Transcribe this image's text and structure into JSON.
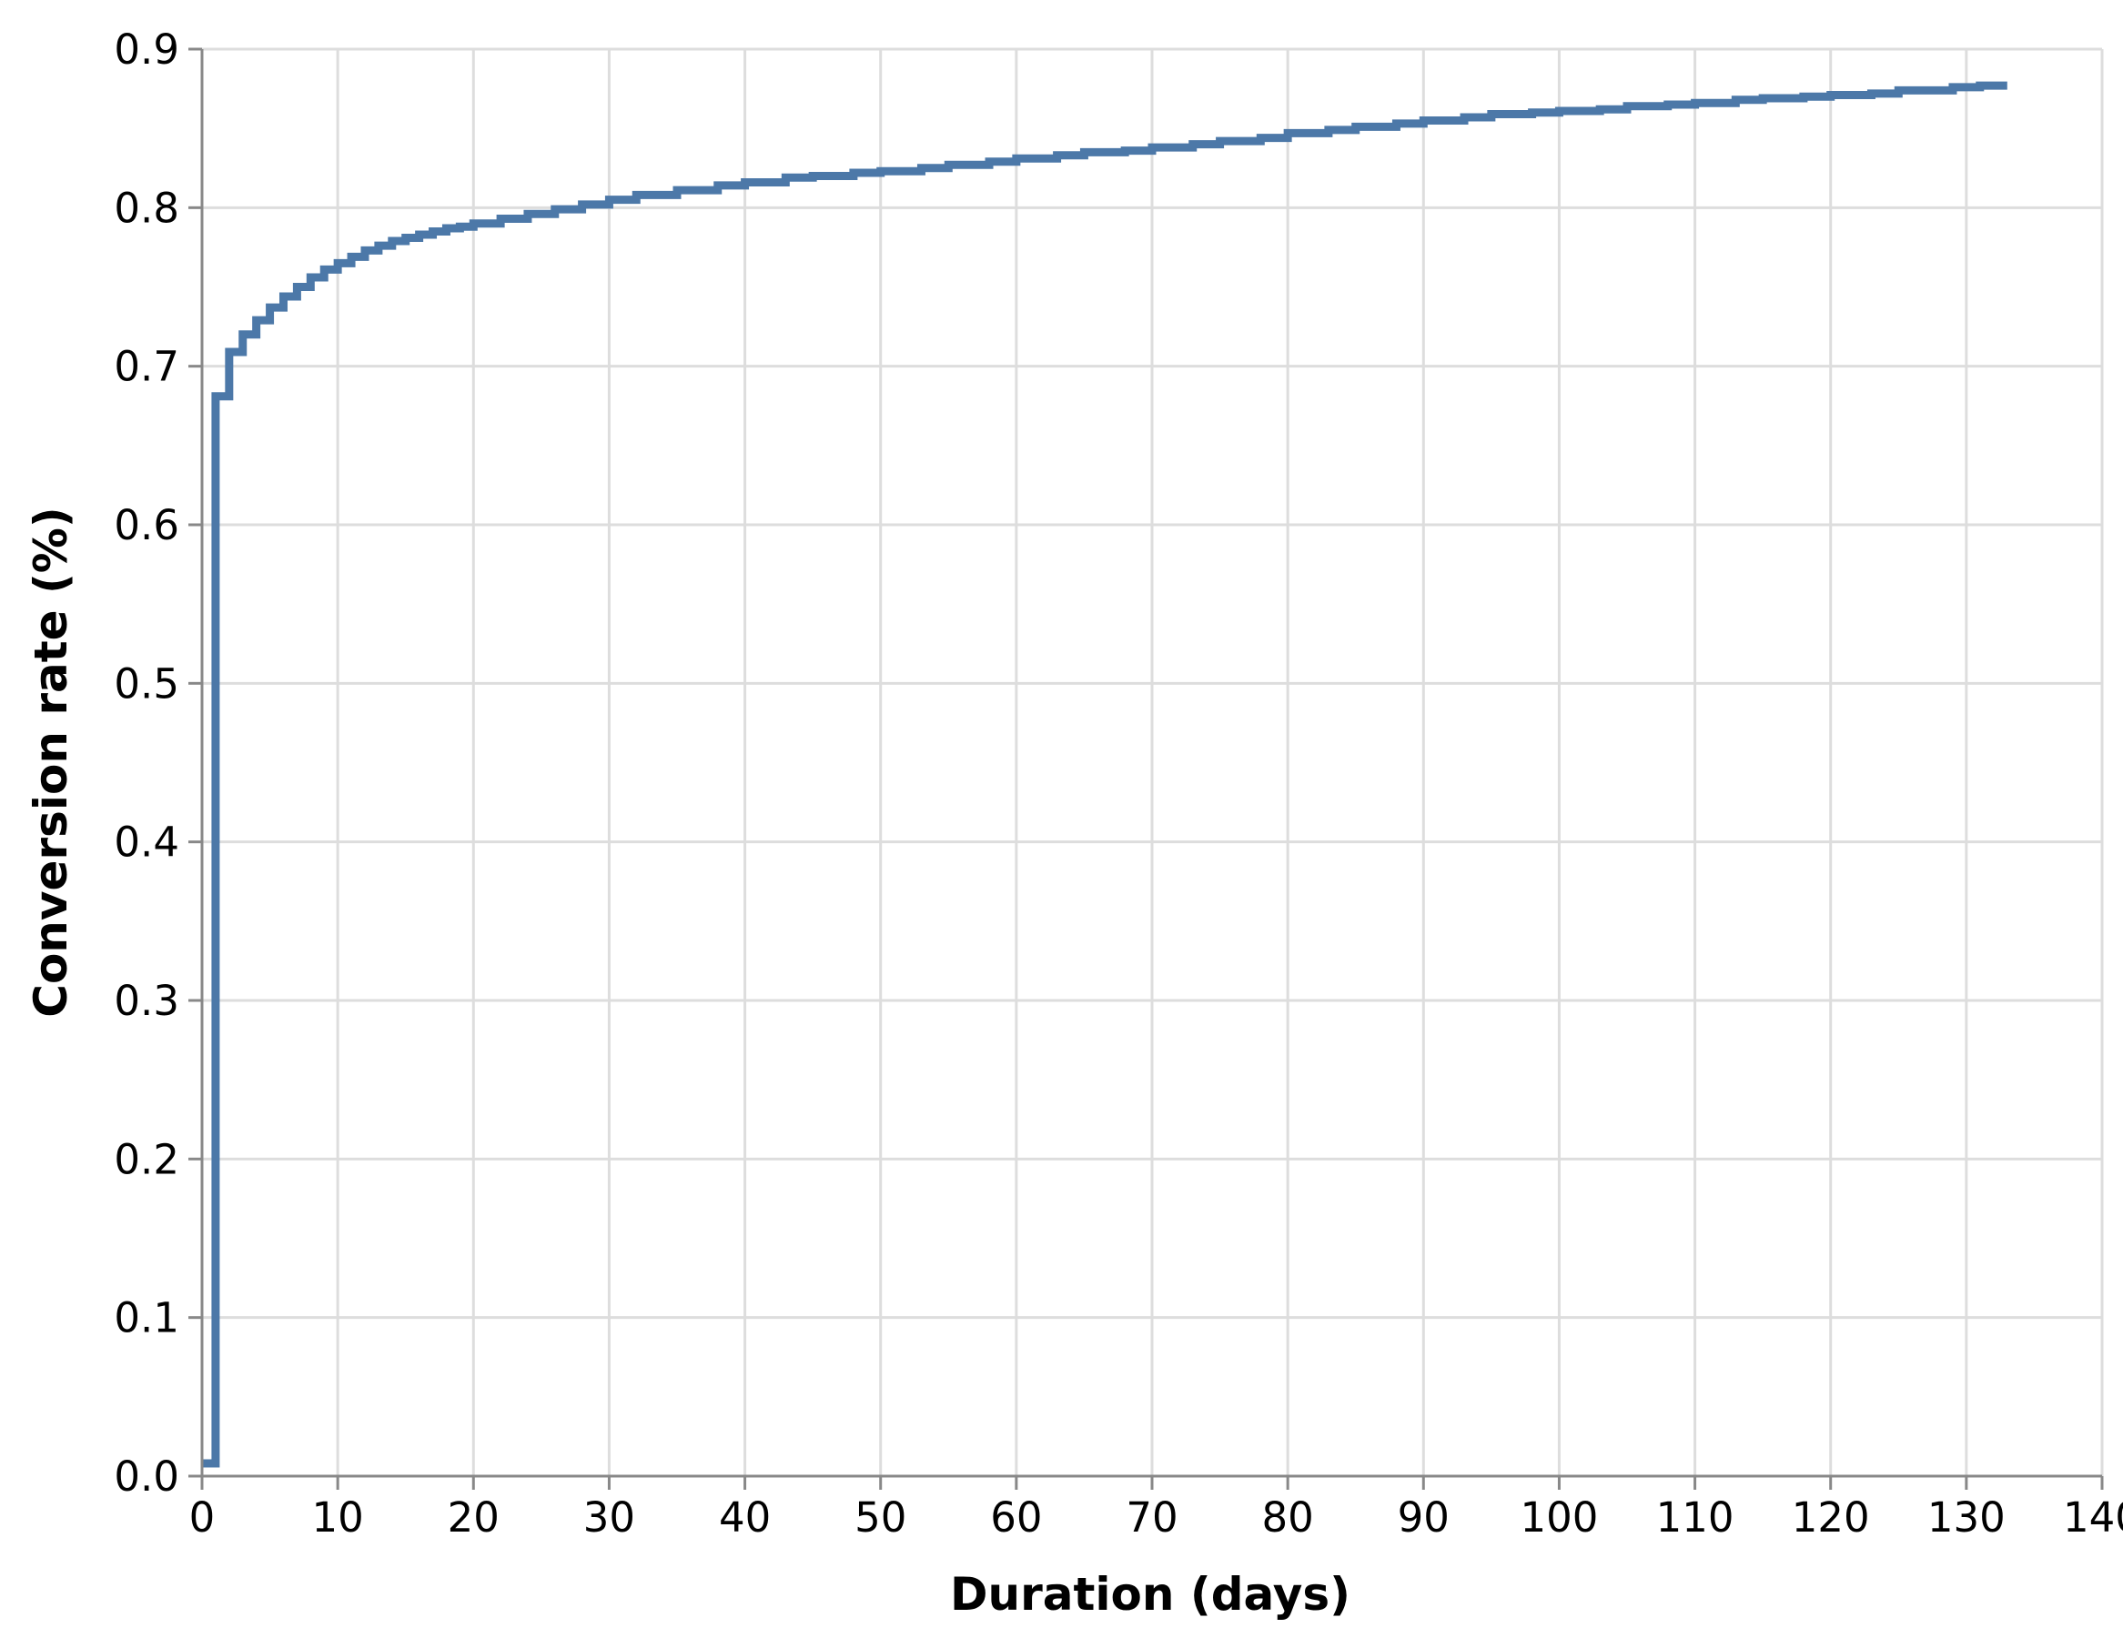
{
  "chart_data": {
    "type": "line",
    "interpolation": "step-after",
    "xlabel": "Duration (days)",
    "ylabel": "Conversion rate (%)",
    "xlim": [
      0,
      140
    ],
    "ylim": [
      0,
      0.9
    ],
    "x_ticks": [
      0,
      10,
      20,
      30,
      40,
      50,
      60,
      70,
      80,
      90,
      100,
      110,
      120,
      130,
      140
    ],
    "y_ticks": [
      0.0,
      0.1,
      0.2,
      0.3,
      0.4,
      0.5,
      0.6,
      0.7,
      0.8,
      0.9
    ],
    "x_tick_labels": [
      "0",
      "10",
      "20",
      "30",
      "40",
      "50",
      "60",
      "70",
      "80",
      "90",
      "100",
      "110",
      "120",
      "130",
      "140"
    ],
    "y_tick_labels": [
      "0.0",
      "0.1",
      "0.2",
      "0.3",
      "0.4",
      "0.5",
      "0.6",
      "0.7",
      "0.8",
      "0.9"
    ],
    "grid": true,
    "legend": "none",
    "series": [
      {
        "color": "#4c78a8",
        "x": [
          0,
          1,
          2,
          3,
          4,
          5,
          6,
          7,
          8,
          9,
          10,
          11,
          12,
          13,
          14,
          15,
          16,
          17,
          18,
          19,
          20,
          22,
          24,
          26,
          28,
          30,
          32,
          35,
          38,
          40,
          43,
          45,
          48,
          50,
          53,
          55,
          58,
          60,
          63,
          65,
          68,
          70,
          73,
          75,
          78,
          80,
          83,
          85,
          88,
          90,
          93,
          95,
          98,
          100,
          103,
          105,
          108,
          110,
          113,
          115,
          118,
          120,
          123,
          125,
          129,
          131
        ],
        "values": [
          0.008,
          0.681,
          0.709,
          0.72,
          0.729,
          0.737,
          0.744,
          0.75,
          0.756,
          0.761,
          0.765,
          0.769,
          0.773,
          0.776,
          0.779,
          0.781,
          0.783,
          0.785,
          0.787,
          0.788,
          0.79,
          0.793,
          0.796,
          0.799,
          0.802,
          0.805,
          0.808,
          0.811,
          0.814,
          0.816,
          0.819,
          0.82,
          0.822,
          0.823,
          0.825,
          0.827,
          0.829,
          0.831,
          0.833,
          0.835,
          0.836,
          0.838,
          0.84,
          0.842,
          0.844,
          0.847,
          0.849,
          0.851,
          0.853,
          0.855,
          0.857,
          0.859,
          0.86,
          0.861,
          0.862,
          0.864,
          0.865,
          0.866,
          0.868,
          0.869,
          0.87,
          0.871,
          0.872,
          0.874,
          0.876,
          0.877
        ]
      }
    ]
  }
}
